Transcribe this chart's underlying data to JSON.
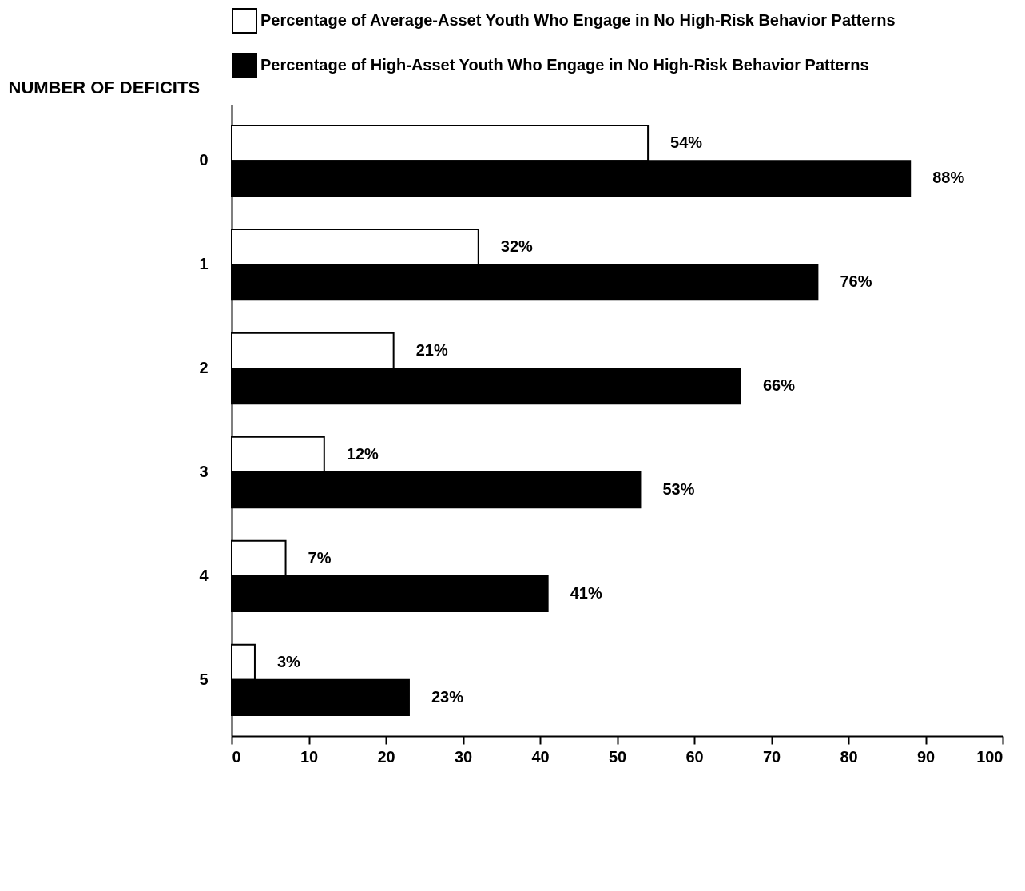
{
  "chart_data": {
    "type": "bar",
    "orientation": "horizontal",
    "ylabel": "NUMBER OF DEFICITS",
    "categories": [
      "0",
      "1",
      "2",
      "3",
      "4",
      "5"
    ],
    "series": [
      {
        "name": "Percentage of Average-Asset Youth Who Engage in No High-Risk Behavior Patterns",
        "color": "#ffffff",
        "values": [
          54,
          32,
          21,
          12,
          7,
          3
        ],
        "value_labels": [
          "54%",
          "32%",
          "21%",
          "12%",
          "7%",
          "3%"
        ]
      },
      {
        "name": "Percentage of High-Asset Youth Who Engage in No High-Risk Behavior Patterns",
        "color": "#000000",
        "values": [
          88,
          76,
          66,
          53,
          41,
          23
        ],
        "value_labels": [
          "88%",
          "76%",
          "66%",
          "53%",
          "41%",
          "23%"
        ]
      }
    ],
    "xlim": [
      0,
      100
    ],
    "xticks": [
      0,
      10,
      20,
      30,
      40,
      50,
      60,
      70,
      80,
      90,
      100
    ],
    "grid": false,
    "legend": "top"
  }
}
